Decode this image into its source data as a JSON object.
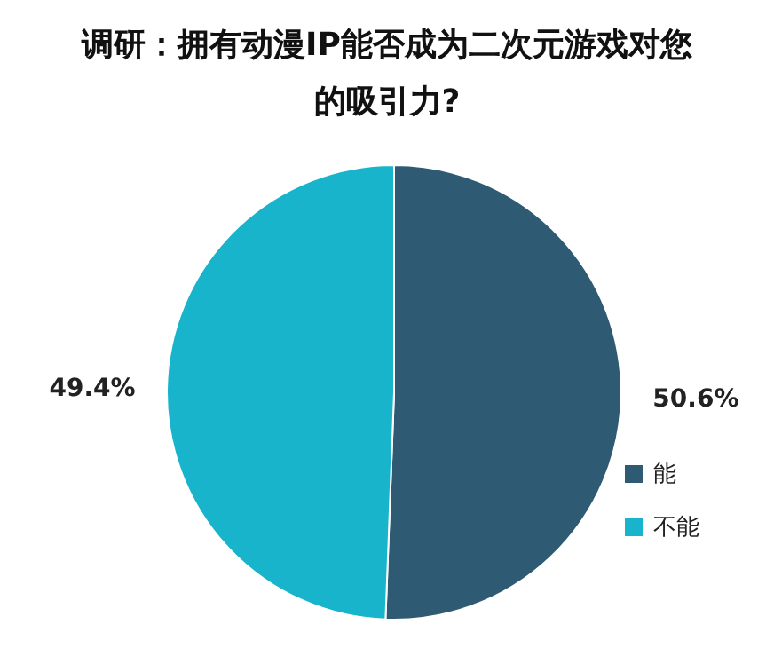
{
  "chart_data": {
    "type": "pie",
    "title": "调研：拥有动漫IP能否成为二次元游戏对您的吸引力?",
    "categories": [
      "能",
      "不能"
    ],
    "values": [
      50.6,
      49.4
    ],
    "value_labels": [
      "50.6%",
      "49.4%"
    ],
    "colors": [
      "#2f5a74",
      "#18b4cb"
    ],
    "legend": "right"
  }
}
